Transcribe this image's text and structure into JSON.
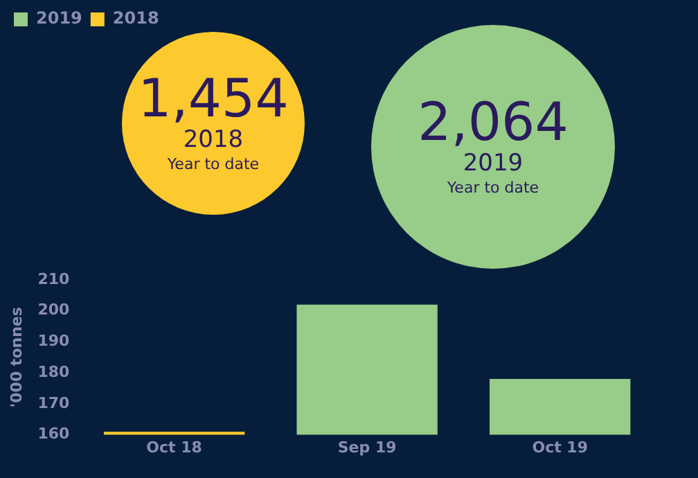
{
  "chart_data": {
    "type": "bar",
    "ylabel": "'000 tonnes",
    "categories": [
      "Oct 18",
      "Sep 19",
      "Oct 19"
    ],
    "series": [
      {
        "name": "2019",
        "color": "#97cd88",
        "values": [
          null,
          202,
          178
        ]
      },
      {
        "name": "2018",
        "color": "#fcc92e",
        "values": [
          161,
          null,
          null
        ]
      }
    ],
    "ylim": [
      160,
      210
    ],
    "yticks": [
      160,
      170,
      180,
      190,
      200,
      210
    ],
    "grid": false,
    "legend": "top left",
    "annotations": [
      "1,454",
      "2018",
      "Year to date",
      "2,064",
      "2019",
      "Year to date"
    ]
  }
}
